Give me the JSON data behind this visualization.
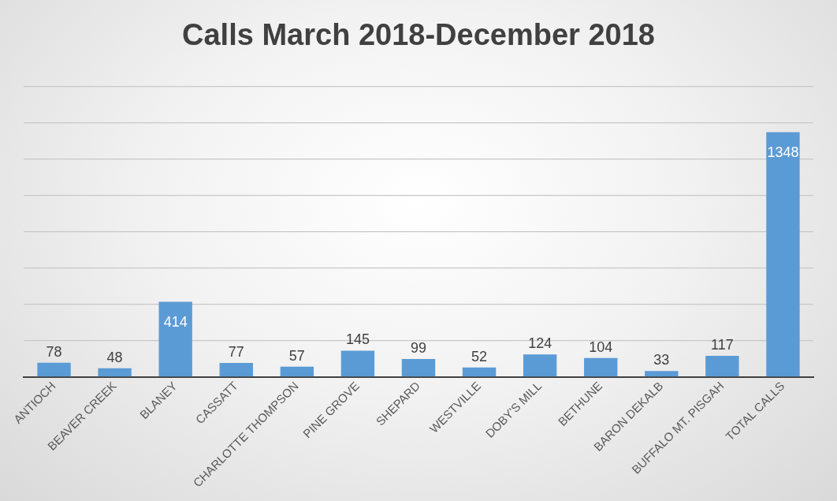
{
  "chart_data": {
    "type": "bar",
    "title": "Calls March 2018-December 2018",
    "categories": [
      "ANTIOCH",
      "BEAVER CREEK",
      "BLANEY",
      "CASSATT",
      "CHARLOTTE THOMPSON",
      "PINE GROVE",
      "SHEPARD",
      "WESTVILLE",
      "DOBY'S MILL",
      "BETHUNE",
      "BARON DEKALB",
      "BUFFALO MT. PISGAH",
      "TOTAL CALLS"
    ],
    "values": [
      78,
      48,
      414,
      77,
      57,
      145,
      99,
      52,
      124,
      104,
      33,
      117,
      1348
    ],
    "color": "#5b9bd5",
    "ylim": [
      0,
      1600
    ],
    "yticks": [
      {
        "value": 0,
        "label": null
      },
      {
        "value": 200,
        "label": null
      },
      {
        "value": 400,
        "label": null
      },
      {
        "value": 600,
        "label": null
      },
      {
        "value": 800,
        "label": null
      },
      {
        "value": 1000,
        "label": null
      },
      {
        "value": 1200,
        "label": null
      }
    ],
    "tick_labels": "x",
    "grid": "y",
    "data_labels": true
  }
}
